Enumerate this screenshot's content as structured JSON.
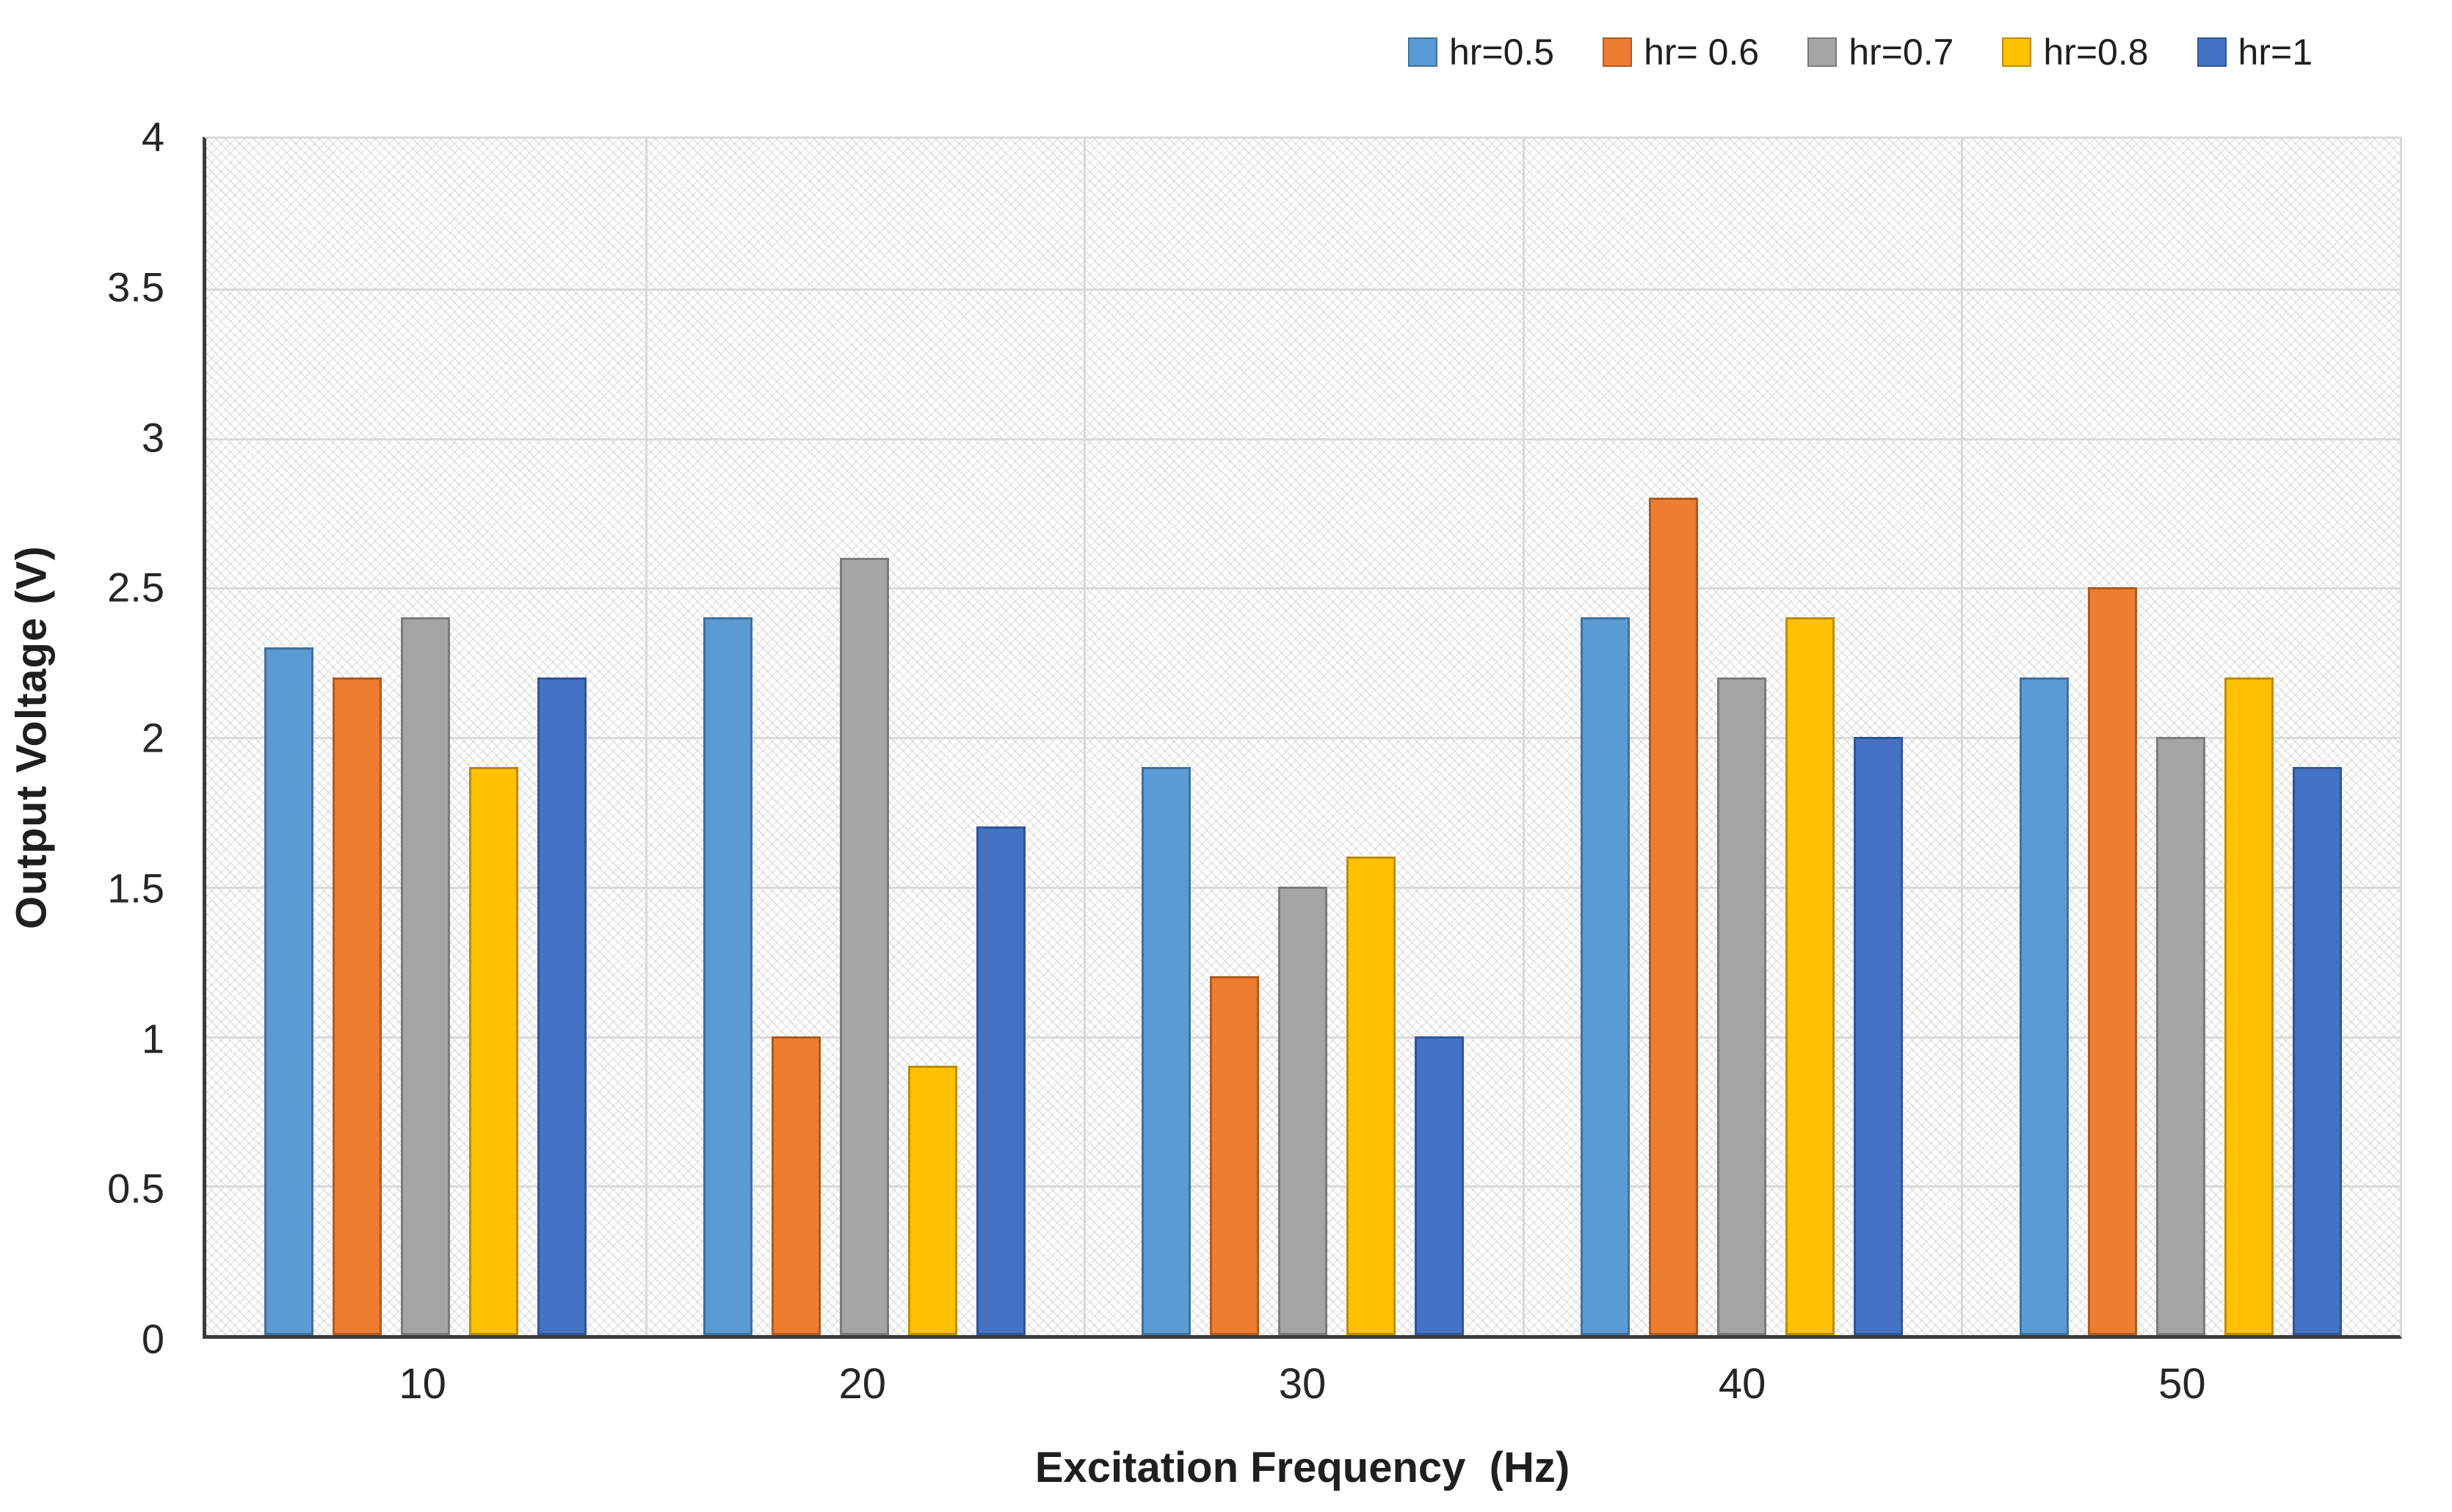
{
  "figure": {
    "background": "#ffffff"
  },
  "legend": {
    "position": "top-right"
  },
  "y_axis": {
    "title": "Output Voltage (V)",
    "ticks": [
      "4",
      "3.5",
      "3",
      "2.5",
      "2",
      "1.5",
      "1",
      "0.5",
      "0"
    ]
  },
  "x_axis": {
    "title": "Excitation Frequency  (Hz)",
    "categories": [
      "10",
      "20",
      "30",
      "40",
      "50"
    ]
  },
  "chart_data": {
    "type": "bar",
    "title": "",
    "xlabel": "Excitation Frequency  (Hz)",
    "ylabel": "Output Voltage (V)",
    "ylim": [
      0,
      4
    ],
    "ytick_step": 0.5,
    "grid": true,
    "legend_position": "top-right",
    "plot_hatch_pattern": true,
    "gridline_color": "#d9d9d9",
    "axis_line_color": "#3b3b3b",
    "categories": [
      "10",
      "20",
      "30",
      "40",
      "50"
    ],
    "series": [
      {
        "name": "hr=0.5",
        "color": "#5B9BD5",
        "border_color": "#41719C",
        "values": [
          2.3,
          2.4,
          1.9,
          2.4,
          2.2
        ]
      },
      {
        "name": "hr= 0.6",
        "color": "#ED7D31",
        "border_color": "#AE5A21",
        "values": [
          2.2,
          1.0,
          1.2,
          2.8,
          2.5
        ]
      },
      {
        "name": "hr=0.7",
        "color": "#A5A5A5",
        "border_color": "#7B7B7B",
        "values": [
          2.4,
          2.6,
          1.5,
          2.2,
          2.0
        ]
      },
      {
        "name": "hr=0.8",
        "color": "#FFC000",
        "border_color": "#BC8C00",
        "values": [
          1.9,
          0.9,
          1.6,
          2.4,
          2.2
        ]
      },
      {
        "name": "hr=1",
        "color": "#4472C4",
        "border_color": "#2F5597",
        "values": [
          2.2,
          1.7,
          1.0,
          2.0,
          1.9
        ]
      }
    ]
  }
}
